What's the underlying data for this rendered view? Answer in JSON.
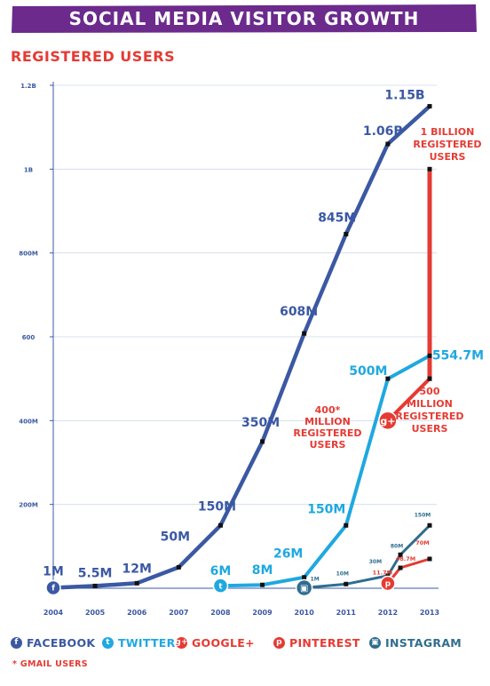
{
  "header": {
    "title": "Social Media Visitor Growth",
    "subtitle": "Registered Users"
  },
  "colors": {
    "banner": "#6b2a8c",
    "facebook": "#3b58a3",
    "twitter": "#1fa8e0",
    "googleplus": "#e53b33",
    "pinterest": "#e53b33",
    "instagram": "#2f6d8f",
    "gmail": "#e53b33",
    "axis": "#3b58a3"
  },
  "chart_data": {
    "type": "line",
    "title": "Social Media Visitor Growth",
    "subtitle": "Registered Users",
    "xlabel": "",
    "ylabel": "",
    "x": [
      2004,
      2005,
      2006,
      2007,
      2008,
      2009,
      2010,
      2011,
      2012,
      2013
    ],
    "y_ticks": [
      "",
      "200M",
      "400M",
      "600",
      "800M",
      "1B",
      "1.2B"
    ],
    "ylim": [
      0,
      1200
    ],
    "y_unit": "millions",
    "grid": true,
    "series": [
      {
        "name": "Facebook",
        "color": "#3b58a3",
        "points": [
          [
            2004,
            1
          ],
          [
            2005,
            5.5
          ],
          [
            2006,
            12
          ],
          [
            2007,
            50
          ],
          [
            2008,
            150
          ],
          [
            2009,
            350
          ],
          [
            2010,
            608
          ],
          [
            2011,
            845
          ],
          [
            2012,
            1060
          ],
          [
            2013,
            1150
          ]
        ],
        "labels": [
          "1M",
          "5.5M",
          "12M",
          "50M",
          "150M",
          "350M",
          "608M",
          "845M",
          "1.06B",
          "1.15B"
        ]
      },
      {
        "name": "Twitter",
        "color": "#1fa8e0",
        "points": [
          [
            2008,
            6
          ],
          [
            2009,
            8
          ],
          [
            2010,
            26
          ],
          [
            2011,
            150
          ],
          [
            2012,
            500
          ],
          [
            2013,
            554.7
          ]
        ],
        "labels": [
          "6M",
          "8M",
          "26M",
          "150M",
          "500M",
          "554.7M"
        ]
      },
      {
        "name": "Instagram",
        "color": "#2f6d8f",
        "points": [
          [
            2010,
            1
          ],
          [
            2011,
            10
          ],
          [
            2012,
            30
          ],
          [
            2012.3,
            80
          ],
          [
            2013,
            150
          ]
        ],
        "labels": [
          "1M",
          "10M",
          "30M",
          "80M",
          "150M"
        ]
      },
      {
        "name": "Pinterest",
        "color": "#e53b33",
        "points": [
          [
            2012,
            11.7
          ],
          [
            2012.3,
            48.7
          ],
          [
            2013,
            70
          ]
        ],
        "labels": [
          "11.7M",
          "48.7M",
          "70M"
        ]
      },
      {
        "name": "Google+",
        "color": "#e53b33",
        "points": [
          [
            2012,
            400
          ],
          [
            2013,
            500
          ]
        ],
        "labels": [
          "400*",
          "500"
        ]
      },
      {
        "name": "Gmail Users",
        "color": "#e53b33",
        "points": [
          [
            2013,
            500
          ],
          [
            2013,
            1000
          ]
        ],
        "labels": [
          "1 Billion"
        ]
      }
    ],
    "annotations": [
      {
        "lines": [
          "400*",
          "Million",
          "Registered",
          "Users"
        ]
      },
      {
        "lines": [
          "500",
          "Million",
          "Registered",
          "Users"
        ]
      },
      {
        "lines": [
          "1 Billion",
          "Registered",
          "Users"
        ]
      }
    ]
  },
  "legend": {
    "items": [
      {
        "label": "Facebook",
        "icon": "facebook-icon",
        "glyph": "f",
        "color": "#3b58a3"
      },
      {
        "label": "Twitter",
        "icon": "twitter-icon",
        "glyph": "t",
        "color": "#1fa8e0"
      },
      {
        "label": "Google+",
        "icon": "googleplus-icon",
        "glyph": "g+",
        "color": "#e53b33"
      },
      {
        "label": "Pinterest",
        "icon": "pinterest-icon",
        "glyph": "p",
        "color": "#e53b33"
      },
      {
        "label": "Instagram",
        "icon": "instagram-icon",
        "glyph": "▣",
        "color": "#2f6d8f"
      }
    ],
    "note": "* Gmail Users"
  }
}
